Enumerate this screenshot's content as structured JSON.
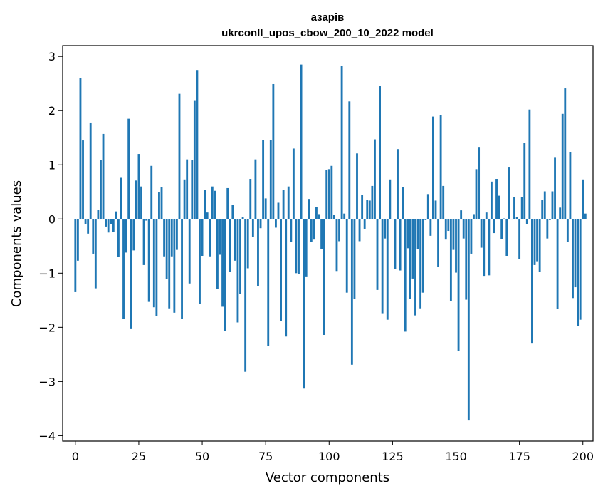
{
  "chart_data": {
    "type": "bar",
    "title_line1": "азарів",
    "title_line2": "ukrconll_upos_cbow_200_10_2022 model",
    "xlabel": "Vector components",
    "ylabel": "Components values",
    "xlim": [
      -5,
      204
    ],
    "ylim": [
      -4.1,
      3.2
    ],
    "xticks": [
      0,
      25,
      50,
      75,
      100,
      125,
      150,
      175,
      200
    ],
    "yticks": [
      -4,
      -3,
      -2,
      -1,
      0,
      1,
      2,
      3
    ],
    "bar_color": "#1f77b4",
    "grid": false,
    "values": [
      -1.35,
      -0.77,
      2.6,
      1.45,
      -0.1,
      -0.27,
      1.78,
      -0.64,
      -1.28,
      0.17,
      1.09,
      1.57,
      -0.14,
      -0.25,
      -0.1,
      -0.24,
      0.14,
      -0.7,
      0.76,
      -1.84,
      -0.62,
      1.85,
      -2.02,
      -0.58,
      0.71,
      1.2,
      0.6,
      -0.85,
      -0.03,
      -1.53,
      0.98,
      -1.63,
      -1.79,
      0.49,
      0.59,
      -0.69,
      -1.11,
      -1.65,
      -0.69,
      -1.73,
      -0.57,
      2.31,
      -1.84,
      0.73,
      1.1,
      -1.19,
      1.09,
      2.18,
      2.75,
      -1.57,
      -0.68,
      0.54,
      0.12,
      -0.69,
      0.6,
      0.52,
      -1.29,
      -0.66,
      -1.62,
      -2.07,
      0.57,
      -0.97,
      0.26,
      -0.77,
      -1.91,
      -1.38,
      0.03,
      -2.82,
      -0.91,
      0.74,
      -0.33,
      1.1,
      -1.24,
      -0.17,
      1.46,
      0.38,
      -2.35,
      1.46,
      2.49,
      -0.16,
      0.3,
      -1.89,
      0.54,
      -2.17,
      0.6,
      -0.42,
      1.3,
      -1.0,
      -1.02,
      2.85,
      -3.13,
      -1.06,
      0.37,
      -0.43,
      -0.38,
      0.22,
      0.09,
      -0.55,
      -2.14,
      0.9,
      0.92,
      0.98,
      0.08,
      -0.96,
      -0.41,
      2.82,
      0.1,
      -1.36,
      2.17,
      -2.69,
      -1.48,
      1.21,
      -0.41,
      0.44,
      -0.18,
      0.35,
      0.34,
      0.61,
      1.47,
      -1.31,
      2.45,
      -1.74,
      -0.36,
      -1.86,
      0.73,
      -0.01,
      -0.93,
      1.29,
      -0.95,
      0.59,
      -2.08,
      -0.54,
      -1.47,
      -1.1,
      -1.78,
      -0.56,
      -1.65,
      -1.36,
      -0.02,
      0.46,
      -0.31,
      1.89,
      0.34,
      -0.88,
      1.92,
      0.61,
      -0.38,
      -0.22,
      -1.52,
      -0.57,
      -0.99,
      -2.44,
      0.16,
      -0.36,
      -1.49,
      -3.72,
      -0.64,
      0.09,
      0.92,
      1.33,
      -0.53,
      -1.05,
      0.12,
      -1.04,
      0.69,
      -0.26,
      0.74,
      0.43,
      -0.37,
      0.01,
      -0.68,
      0.95,
      -0.01,
      0.41,
      0.03,
      -0.74,
      0.41,
      1.4,
      -0.1,
      2.02,
      -2.3,
      -0.85,
      -0.78,
      -0.98,
      0.35,
      0.51,
      -0.36,
      -0.02,
      0.51,
      1.13,
      -1.66,
      0.21,
      1.94,
      2.41,
      -0.42,
      1.24,
      -1.46,
      -1.26,
      -1.98,
      -1.86,
      0.73,
      0.1
    ]
  }
}
